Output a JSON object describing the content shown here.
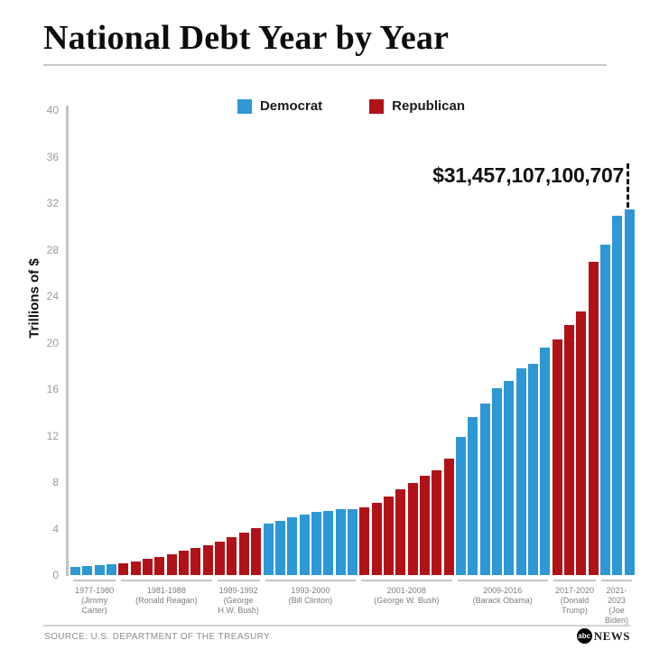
{
  "header": {
    "title": "National Debt Year by Year"
  },
  "legend": {
    "items": [
      {
        "label": "Democrat",
        "color": "#2E97D5"
      },
      {
        "label": "Republican",
        "color": "#B01218"
      }
    ]
  },
  "footer": {
    "source": "SOURCE: U.S. DEPARTMENT OF THE TREASURY",
    "logo_abc": "abc",
    "logo_news": "NEWS"
  },
  "chart_data": {
    "type": "bar",
    "title": "National Debt Year by Year",
    "xlabel": "",
    "ylabel": "Trillions of $",
    "ylim": [
      0,
      40
    ],
    "yticks": [
      0,
      4,
      8,
      12,
      16,
      20,
      24,
      28,
      32,
      36,
      40
    ],
    "grid": false,
    "legend_position": "top-center",
    "annotation": {
      "text": "$31,457,107,100,707",
      "points_to_year": 2023,
      "value_trillions": 31.46
    },
    "colors": {
      "Democrat": "#2E97D5",
      "Republican": "#B01218"
    },
    "bars": [
      {
        "year": 1977,
        "value": 0.7,
        "party": "Democrat"
      },
      {
        "year": 1978,
        "value": 0.77,
        "party": "Democrat"
      },
      {
        "year": 1979,
        "value": 0.83,
        "party": "Democrat"
      },
      {
        "year": 1980,
        "value": 0.91,
        "party": "Democrat"
      },
      {
        "year": 1981,
        "value": 1.0,
        "party": "Republican"
      },
      {
        "year": 1982,
        "value": 1.14,
        "party": "Republican"
      },
      {
        "year": 1983,
        "value": 1.38,
        "party": "Republican"
      },
      {
        "year": 1984,
        "value": 1.57,
        "party": "Republican"
      },
      {
        "year": 1985,
        "value": 1.82,
        "party": "Republican"
      },
      {
        "year": 1986,
        "value": 2.12,
        "party": "Republican"
      },
      {
        "year": 1987,
        "value": 2.35,
        "party": "Republican"
      },
      {
        "year": 1988,
        "value": 2.6,
        "party": "Republican"
      },
      {
        "year": 1989,
        "value": 2.86,
        "party": "Republican"
      },
      {
        "year": 1990,
        "value": 3.23,
        "party": "Republican"
      },
      {
        "year": 1991,
        "value": 3.67,
        "party": "Republican"
      },
      {
        "year": 1992,
        "value": 4.06,
        "party": "Republican"
      },
      {
        "year": 1993,
        "value": 4.41,
        "party": "Democrat"
      },
      {
        "year": 1994,
        "value": 4.69,
        "party": "Democrat"
      },
      {
        "year": 1995,
        "value": 4.97,
        "party": "Democrat"
      },
      {
        "year": 1996,
        "value": 5.22,
        "party": "Democrat"
      },
      {
        "year": 1997,
        "value": 5.41,
        "party": "Democrat"
      },
      {
        "year": 1998,
        "value": 5.53,
        "party": "Democrat"
      },
      {
        "year": 1999,
        "value": 5.66,
        "party": "Democrat"
      },
      {
        "year": 2000,
        "value": 5.67,
        "party": "Democrat"
      },
      {
        "year": 2001,
        "value": 5.81,
        "party": "Republican"
      },
      {
        "year": 2002,
        "value": 6.23,
        "party": "Republican"
      },
      {
        "year": 2003,
        "value": 6.78,
        "party": "Republican"
      },
      {
        "year": 2004,
        "value": 7.38,
        "party": "Republican"
      },
      {
        "year": 2005,
        "value": 7.93,
        "party": "Republican"
      },
      {
        "year": 2006,
        "value": 8.51,
        "party": "Republican"
      },
      {
        "year": 2007,
        "value": 9.01,
        "party": "Republican"
      },
      {
        "year": 2008,
        "value": 10.02,
        "party": "Republican"
      },
      {
        "year": 2009,
        "value": 11.91,
        "party": "Democrat"
      },
      {
        "year": 2010,
        "value": 13.56,
        "party": "Democrat"
      },
      {
        "year": 2011,
        "value": 14.79,
        "party": "Democrat"
      },
      {
        "year": 2012,
        "value": 16.07,
        "party": "Democrat"
      },
      {
        "year": 2013,
        "value": 16.74,
        "party": "Democrat"
      },
      {
        "year": 2014,
        "value": 17.82,
        "party": "Democrat"
      },
      {
        "year": 2015,
        "value": 18.15,
        "party": "Democrat"
      },
      {
        "year": 2016,
        "value": 19.57,
        "party": "Democrat"
      },
      {
        "year": 2017,
        "value": 20.24,
        "party": "Republican"
      },
      {
        "year": 2018,
        "value": 21.52,
        "party": "Republican"
      },
      {
        "year": 2019,
        "value": 22.72,
        "party": "Republican"
      },
      {
        "year": 2020,
        "value": 26.95,
        "party": "Republican"
      },
      {
        "year": 2021,
        "value": 28.43,
        "party": "Democrat"
      },
      {
        "year": 2022,
        "value": 30.93,
        "party": "Democrat"
      },
      {
        "year": 2023,
        "value": 31.46,
        "party": "Democrat"
      }
    ],
    "groups": [
      {
        "years": "1977-1980",
        "president": "(Jimmy Carter)",
        "bar_count": 4
      },
      {
        "years": "1981-1988",
        "president": "(Ronald Reagan)",
        "bar_count": 8
      },
      {
        "years": "1989-1992",
        "president": "(George H.W. Bush)",
        "bar_count": 4
      },
      {
        "years": "1993-2000",
        "president": "(Bill Clinton)",
        "bar_count": 8
      },
      {
        "years": "2001-2008",
        "president": "(George W. Bush)",
        "bar_count": 8
      },
      {
        "years": "2009-2016",
        "president": "(Barack Obama)",
        "bar_count": 8
      },
      {
        "years": "2017-2020",
        "president": "(Donald Trump)",
        "bar_count": 4
      },
      {
        "years": "2021-2023",
        "president": "(Joe Biden)",
        "bar_count": 3
      }
    ]
  }
}
